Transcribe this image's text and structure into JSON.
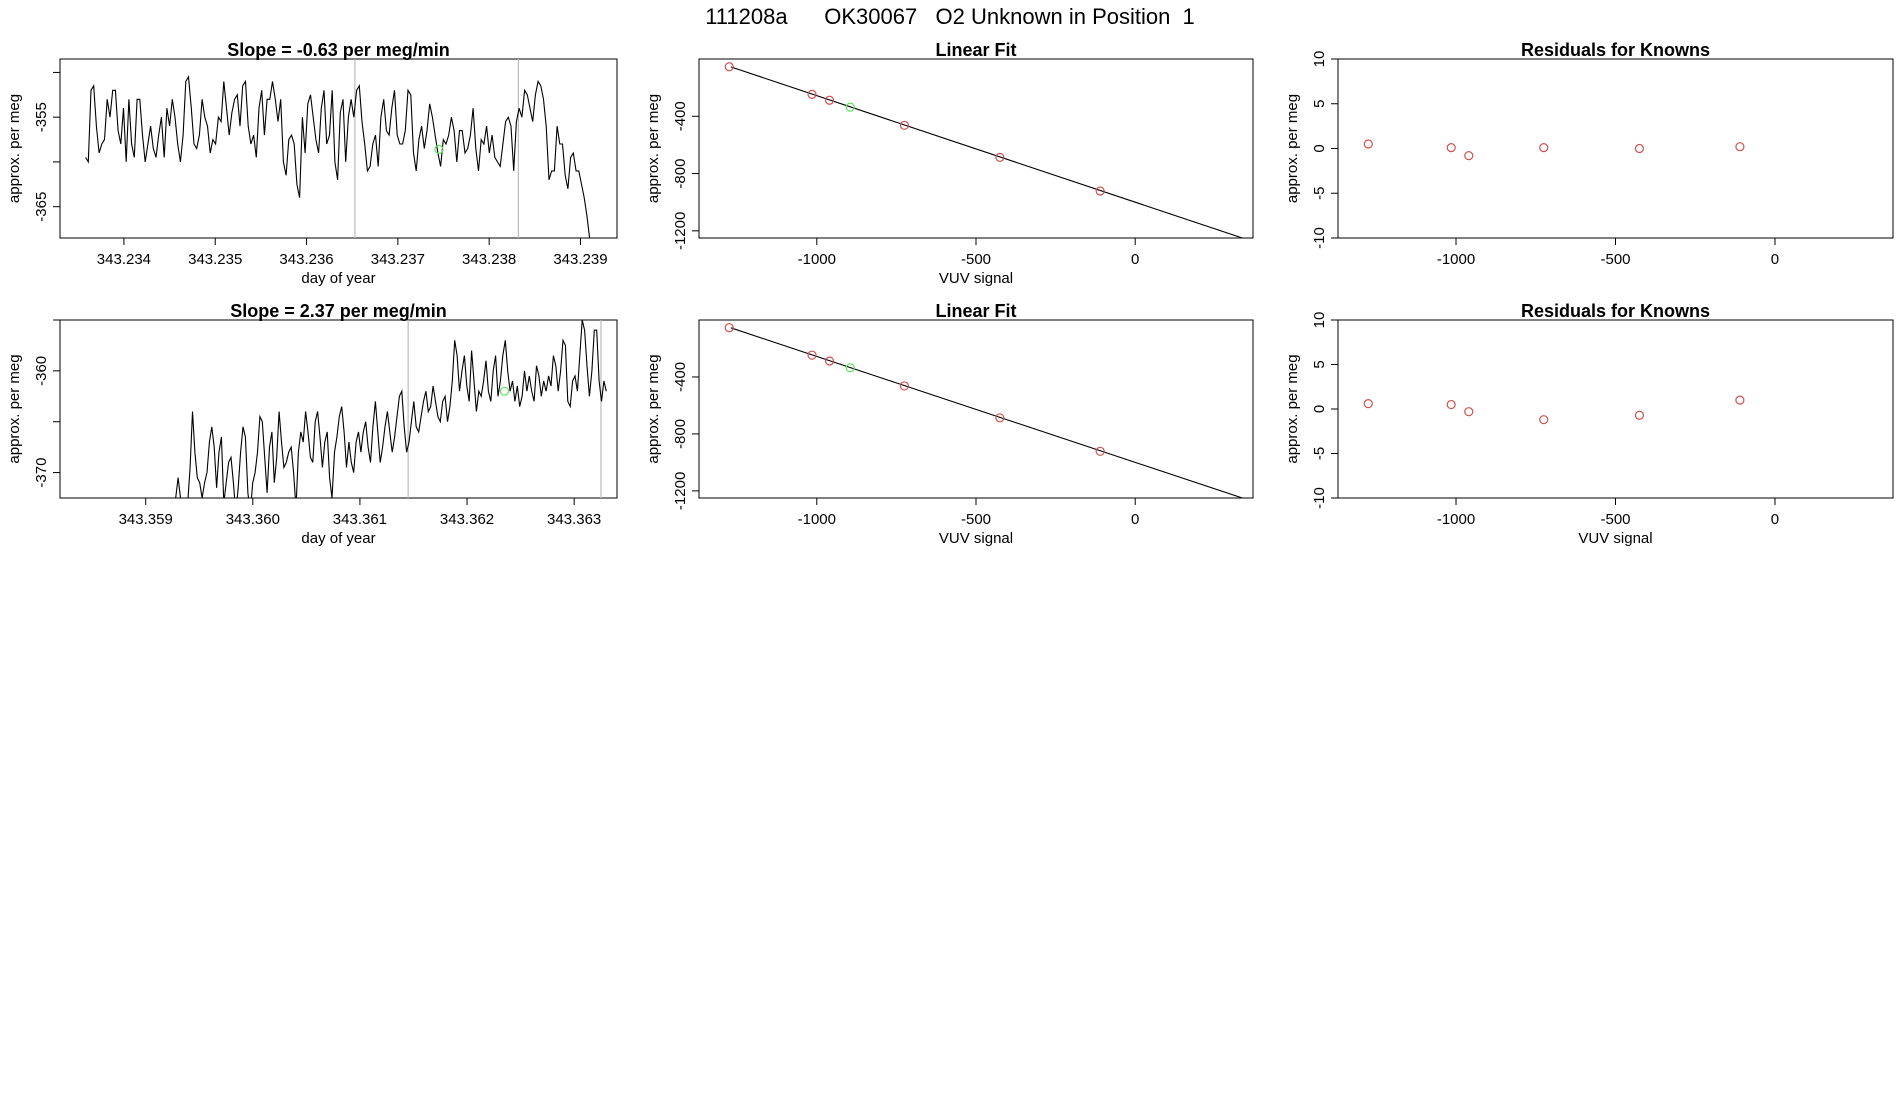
{
  "page_title": "111208a      OK30067   O2 Unknown in Position  1",
  "colors": {
    "known_point": "#d2504e",
    "unknown_point": "#5ee35e",
    "line": "#000000",
    "marker_line": "#bdbdbd"
  },
  "chart_data": [
    {
      "type": "line",
      "title": "Slope =  -0.63  per meg/min",
      "xlabel": "day of year",
      "ylabel": "approx. per meg",
      "xlim": [
        343.2333,
        343.2394
      ],
      "ylim": [
        -368.5,
        -348.5
      ],
      "x_ticks": [
        "343.234",
        "343.235",
        "343.236",
        "343.237",
        "343.238",
        "343.239"
      ],
      "y_ticks": [
        "-365",
        "-355"
      ],
      "y_minor_ticks": [
        -370,
        -360,
        -350
      ],
      "vertical_markers": [
        343.23653,
        343.23832
      ],
      "unknown_point": {
        "x": 343.23745,
        "y": -358.6
      },
      "series": [
        {
          "values": [
            -359.5,
            -360,
            -352,
            -351.5,
            -356,
            -359,
            -358,
            -357.5,
            -353,
            -355,
            -352,
            -352,
            -356.5,
            -358,
            -354,
            -360,
            -353,
            -358,
            -359.5,
            -353,
            -353,
            -357,
            -360,
            -358,
            -356,
            -358.5,
            -359.5,
            -357,
            -355,
            -359.5,
            -354,
            -356,
            -353,
            -355,
            -358,
            -360,
            -357,
            -351,
            -350.5,
            -354,
            -358,
            -358.5,
            -357,
            -353,
            -355,
            -356,
            -359,
            -357.5,
            -358,
            -355,
            -355.5,
            -351,
            -354,
            -357,
            -354.5,
            -353,
            -352.5,
            -356,
            -351.5,
            -351,
            -356,
            -358,
            -357,
            -359.5,
            -354,
            -352,
            -357,
            -353,
            -353,
            -351,
            -353,
            -355.5,
            -353,
            -360,
            -361.5,
            -357.5,
            -357,
            -358,
            -362.5,
            -364,
            -355,
            -359,
            -353.5,
            -352.5,
            -355,
            -357.5,
            -359,
            -354,
            -352,
            -358,
            -357,
            -352,
            -360,
            -362,
            -354.5,
            -353,
            -360,
            -355,
            -353,
            -355,
            -352,
            -351.5,
            -355.5,
            -358,
            -361,
            -360.5,
            -358,
            -357,
            -360.5,
            -355,
            -353,
            -356.5,
            -357,
            -354,
            -352,
            -357,
            -358,
            -358,
            -356.5,
            -352,
            -352.5,
            -359,
            -361,
            -357.5,
            -356,
            -358.5,
            -356.5,
            -353.5,
            -355,
            -357,
            -359,
            -360.5,
            -357.5,
            -358,
            -357,
            -355,
            -356.5,
            -360,
            -356.5,
            -356.5,
            -359,
            -358.5,
            -357,
            -354,
            -358.5,
            -361,
            -357.5,
            -358,
            -356,
            -359,
            -357,
            -359.5,
            -360,
            -360.5,
            -358,
            -355.5,
            -355,
            -356,
            -361,
            -355.5,
            -354,
            -355,
            -352,
            -352.5,
            -354,
            -355.5,
            -352.5,
            -351,
            -351.5,
            -353,
            -356,
            -362,
            -361,
            -361,
            -356,
            -358,
            -358,
            -361.5,
            -363,
            -359.5,
            -359,
            -361,
            -361,
            -362.5,
            -364,
            -366,
            -368.5
          ]
        }
      ]
    },
    {
      "type": "scatter",
      "title": "Linear Fit",
      "xlabel": "VUV signal",
      "ylabel": "approx. per meg",
      "xlim": [
        -1370,
        370
      ],
      "ylim": [
        -1250,
        0
      ],
      "x_ticks": [
        -1000,
        -500,
        0
      ],
      "y_ticks": [
        -400,
        -800,
        -1200
      ],
      "fit_line": {
        "x": [
          -1270,
          370
        ],
        "y": [
          -55,
          -1275
        ]
      },
      "known_points": [
        {
          "x": -1275,
          "y": -54
        },
        {
          "x": -1015,
          "y": -247
        },
        {
          "x": -960,
          "y": -288
        },
        {
          "x": -725,
          "y": -463
        },
        {
          "x": -425,
          "y": -687
        },
        {
          "x": -110,
          "y": -922
        }
      ],
      "unknown_point": {
        "x": -895,
        "y": -336
      }
    },
    {
      "type": "scatter",
      "title": "Residuals for Knowns",
      "xlabel": "",
      "ylabel": "approx. per meg",
      "xlim": [
        -1370,
        370
      ],
      "ylim": [
        -10,
        10
      ],
      "x_ticks": [
        -1000,
        -500,
        0
      ],
      "y_ticks": [
        10,
        5,
        0,
        -5,
        -10
      ],
      "points": [
        {
          "x": -1275,
          "y": 0.5
        },
        {
          "x": -1015,
          "y": 0.1
        },
        {
          "x": -960,
          "y": -0.8
        },
        {
          "x": -725,
          "y": 0.1
        },
        {
          "x": -425,
          "y": 0.0
        },
        {
          "x": -110,
          "y": 0.2
        }
      ]
    },
    {
      "type": "line",
      "title": "Slope =  2.37  per meg/min",
      "xlabel": "day of year",
      "ylabel": "approx. per meg",
      "xlim": [
        343.3582,
        343.3634
      ],
      "ylim": [
        -372.5,
        -355
      ],
      "x_ticks": [
        "343.359",
        "343.360",
        "343.361",
        "343.362",
        "343.363"
      ],
      "y_ticks": [
        "-370",
        "-360"
      ],
      "y_minor_ticks": [
        -365,
        -355
      ],
      "vertical_markers": [
        343.36145,
        343.36325
      ],
      "unknown_point": {
        "x": 343.36235,
        "y": -362
      },
      "series": [
        {
          "values": [
            -372.5,
            -370.5,
            -372.5,
            -372.5,
            -373,
            -373,
            -369.5,
            -364,
            -368,
            -370.5,
            -371,
            -372.5,
            -371,
            -370,
            -367,
            -365.5,
            -367.5,
            -371.5,
            -368,
            -366.5,
            -373,
            -371,
            -369,
            -368.5,
            -371,
            -374,
            -371.5,
            -368,
            -365.5,
            -366.5,
            -372,
            -374,
            -371,
            -370,
            -368,
            -364.5,
            -365,
            -368.5,
            -372,
            -367.5,
            -366,
            -371,
            -368.5,
            -364,
            -367,
            -369.5,
            -369,
            -368,
            -367.5,
            -370,
            -373.5,
            -368,
            -366,
            -367,
            -364,
            -366,
            -368.5,
            -369,
            -365,
            -364,
            -366.5,
            -369.5,
            -367,
            -366,
            -370.5,
            -372.5,
            -368,
            -366.5,
            -364.5,
            -363.5,
            -366,
            -369.5,
            -367,
            -369,
            -370,
            -367,
            -366,
            -368,
            -366,
            -365,
            -367.5,
            -369,
            -365.5,
            -363,
            -366,
            -369,
            -367.5,
            -365.5,
            -364,
            -366,
            -368,
            -366.5,
            -364.5,
            -362.5,
            -362,
            -365.5,
            -368,
            -367,
            -365,
            -363,
            -365.5,
            -366,
            -364.5,
            -363,
            -362,
            -364,
            -363.5,
            -361.5,
            -363,
            -364.5,
            -365,
            -363,
            -362.5,
            -365,
            -363.5,
            -361,
            -357,
            -358.5,
            -362,
            -360,
            -358.5,
            -361.5,
            -363,
            -358,
            -361,
            -364,
            -362,
            -362.5,
            -361,
            -359,
            -362,
            -363,
            -360,
            -358.5,
            -362.5,
            -361,
            -358.5,
            -357,
            -360,
            -362,
            -361,
            -363,
            -361.5,
            -363.5,
            -362.5,
            -360,
            -362,
            -360.5,
            -362,
            -363,
            -359.5,
            -360.5,
            -362.5,
            -361,
            -362,
            -360.5,
            -361.5,
            -358.5,
            -359.5,
            -362,
            -360,
            -357,
            -357.5,
            -363,
            -363.5,
            -361,
            -360.5,
            -362,
            -358.5,
            -355,
            -356,
            -359.5,
            -362.5,
            -360,
            -356,
            -356,
            -361,
            -363,
            -361,
            -362
          ]
        }
      ]
    },
    {
      "type": "scatter",
      "title": "Linear Fit",
      "xlabel": "VUV signal",
      "ylabel": "approx. per meg",
      "xlim": [
        -1370,
        370
      ],
      "ylim": [
        -1250,
        0
      ],
      "x_ticks": [
        -1000,
        -500,
        0
      ],
      "y_ticks": [
        -400,
        -800,
        -1200
      ],
      "fit_line": {
        "x": [
          -1270,
          370
        ],
        "y": [
          -55,
          -1275
        ]
      },
      "known_points": [
        {
          "x": -1275,
          "y": -54
        },
        {
          "x": -1015,
          "y": -247
        },
        {
          "x": -960,
          "y": -288
        },
        {
          "x": -725,
          "y": -463
        },
        {
          "x": -425,
          "y": -687
        },
        {
          "x": -110,
          "y": -922
        }
      ],
      "unknown_point": {
        "x": -895,
        "y": -336
      }
    },
    {
      "type": "scatter",
      "title": "Residuals for Knowns",
      "xlabel": "VUV signal",
      "ylabel": "approx. per meg",
      "xlim": [
        -1370,
        370
      ],
      "ylim": [
        -10,
        10
      ],
      "x_ticks": [
        -1000,
        -500,
        0
      ],
      "y_ticks": [
        10,
        5,
        0,
        -5,
        -10
      ],
      "points": [
        {
          "x": -1275,
          "y": 0.6
        },
        {
          "x": -1015,
          "y": 0.5
        },
        {
          "x": -960,
          "y": -0.3
        },
        {
          "x": -725,
          "y": -1.2
        },
        {
          "x": -425,
          "y": -0.7
        },
        {
          "x": -110,
          "y": 1.0
        }
      ]
    }
  ]
}
